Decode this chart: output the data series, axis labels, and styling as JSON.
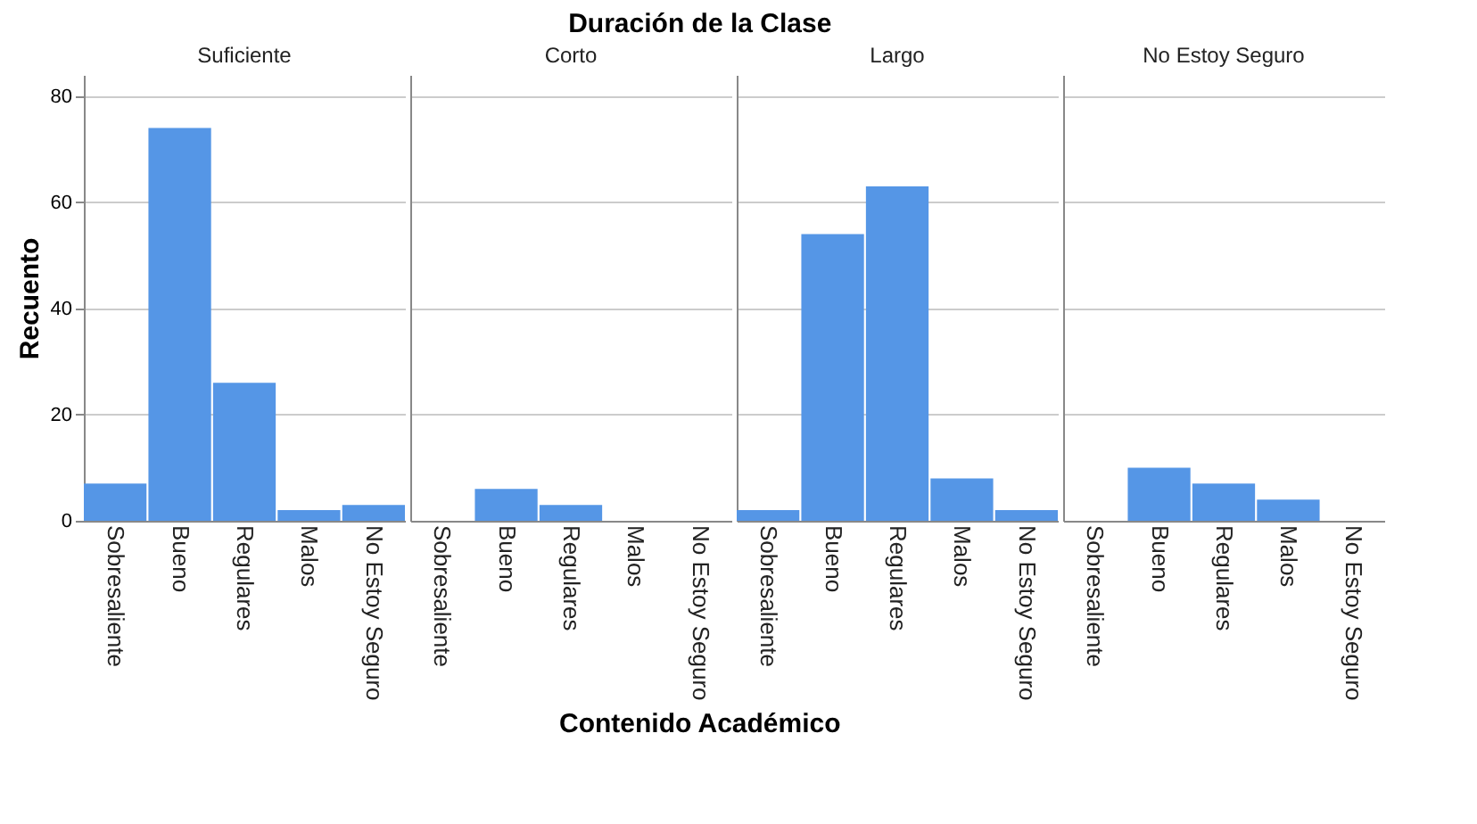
{
  "chart_data": [
    {
      "type": "bar",
      "subtitle": "Suficiente",
      "ylabel": "Recuento",
      "categories": [
        "Sobresaliente",
        "Bueno",
        "Regulares",
        "Malos",
        "No Estoy Seguro"
      ],
      "values": [
        7,
        74,
        26,
        2,
        3
      ],
      "color": "#5596e6",
      "ylim": [
        0,
        84
      ],
      "yticks": [
        0,
        20,
        40,
        60,
        80
      ],
      "grid": "y"
    },
    {
      "type": "bar",
      "title": "Duración de la Clase",
      "subtitle": "Corto",
      "xlabel": "Contenido Académico",
      "categories": [
        "Sobresaliente",
        "Bueno",
        "Regulares",
        "Malos",
        "No Estoy Seguro"
      ],
      "values": [
        0,
        6,
        3,
        0,
        0
      ],
      "color": "#5596e6",
      "ylim": [
        0,
        84
      ],
      "yticks": [
        0,
        20,
        40,
        60,
        80
      ],
      "grid": "y",
      "tick_labels": "x"
    },
    {
      "type": "bar",
      "subtitle": "Largo",
      "categories": [
        "Sobresaliente",
        "Bueno",
        "Regulares",
        "Malos",
        "No Estoy Seguro"
      ],
      "values": [
        2,
        54,
        63,
        8,
        2
      ],
      "color": "#5596e6",
      "ylim": [
        0,
        84
      ],
      "yticks": [
        0,
        20,
        40,
        60,
        80
      ],
      "grid": "y",
      "tick_labels": "x"
    },
    {
      "type": "bar",
      "subtitle": "No Estoy Seguro",
      "categories": [
        "Sobresaliente",
        "Bueno",
        "Regulares",
        "Malos",
        "No Estoy Seguro"
      ],
      "values": [
        0,
        10,
        7,
        4,
        0
      ],
      "color": "#5596e6",
      "ylim": [
        0,
        84
      ],
      "yticks": [
        0,
        20,
        40,
        60,
        80
      ],
      "grid": "y",
      "tick_labels": "x"
    }
  ]
}
